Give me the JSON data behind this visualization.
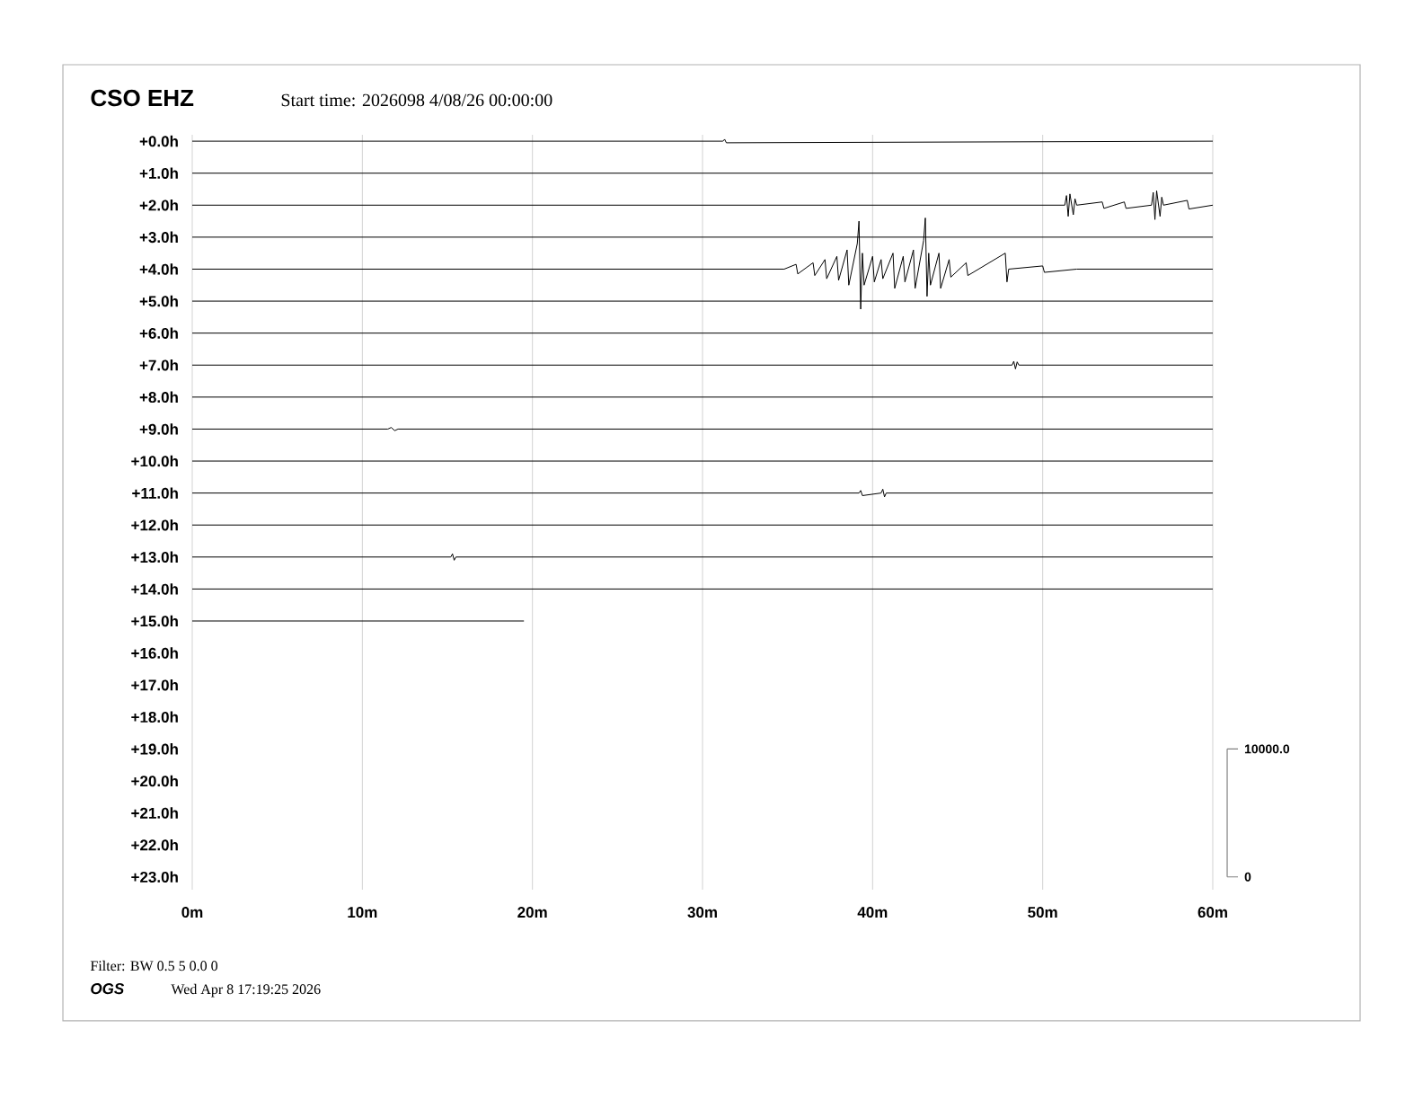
{
  "chart_data": {
    "type": "line",
    "title": "CSO EHZ",
    "subtitle": "Start time: 2026098  4/08/26 00:00:00",
    "annotations": [
      "Filter: BW 0.5 5 0.0 0",
      "OGS",
      "Wed Apr  8 17:19:25 2026"
    ],
    "xlim": [
      0,
      60
    ],
    "xticks": [
      {
        "value": 0,
        "label": "0m"
      },
      {
        "value": 10,
        "label": "10m"
      },
      {
        "value": 20,
        "label": "20m"
      },
      {
        "value": 30,
        "label": "30m"
      },
      {
        "value": 40,
        "label": "40m"
      },
      {
        "value": 50,
        "label": "50m"
      },
      {
        "value": 60,
        "label": "60m"
      }
    ],
    "ylim": [
      23.4,
      -0.2
    ],
    "yticks": [
      {
        "value": 0,
        "label": "+0.0h"
      },
      {
        "value": 1,
        "label": "+1.0h"
      },
      {
        "value": 2,
        "label": "+2.0h"
      },
      {
        "value": 3,
        "label": "+3.0h"
      },
      {
        "value": 4,
        "label": "+4.0h"
      },
      {
        "value": 5,
        "label": "+5.0h"
      },
      {
        "value": 6,
        "label": "+6.0h"
      },
      {
        "value": 7,
        "label": "+7.0h"
      },
      {
        "value": 8,
        "label": "+8.0h"
      },
      {
        "value": 9,
        "label": "+9.0h"
      },
      {
        "value": 10,
        "label": "+10.0h"
      },
      {
        "value": 11,
        "label": "+11.0h"
      },
      {
        "value": 12,
        "label": "+12.0h"
      },
      {
        "value": 13,
        "label": "+13.0h"
      },
      {
        "value": 14,
        "label": "+14.0h"
      },
      {
        "value": 15,
        "label": "+15.0h"
      },
      {
        "value": 16,
        "label": "+16.0h"
      },
      {
        "value": 17,
        "label": "+17.0h"
      },
      {
        "value": 18,
        "label": "+18.0h"
      },
      {
        "value": 19,
        "label": "+19.0h"
      },
      {
        "value": 20,
        "label": "+20.0h"
      },
      {
        "value": 21,
        "label": "+21.0h"
      },
      {
        "value": 22,
        "label": "+22.0h"
      },
      {
        "value": 23,
        "label": "+23.0h"
      }
    ],
    "y2lim": [
      -1000,
      58000
    ],
    "y2ticks": [
      {
        "value": 10000,
        "label": "10000.0"
      },
      0
    ],
    "grid": "x",
    "series": [
      {
        "color": "#000000",
        "x": [
          0,
          31.2,
          31.3,
          31.4,
          60
        ],
        "values": [
          0,
          0,
          -0.06,
          0.05,
          0
        ]
      },
      {
        "color": "#000000",
        "x": [
          0,
          60
        ],
        "values": [
          1,
          1
        ]
      },
      {
        "color": "#000000",
        "x": [
          0,
          51.3,
          51.4,
          51.5,
          51.6,
          51.8,
          51.9,
          52.0,
          53.5,
          53.6,
          54.8,
          54.9,
          56.4,
          56.5,
          56.6,
          56.7,
          56.9,
          57.0,
          57.1,
          58.5,
          58.6,
          60
        ],
        "values": [
          2,
          2,
          1.7,
          2.35,
          1.65,
          2.3,
          1.8,
          2,
          1.9,
          2.1,
          1.9,
          2.1,
          2,
          1.6,
          2.45,
          1.55,
          2.35,
          1.75,
          2,
          1.85,
          2.12,
          2
        ]
      },
      {
        "color": "#000000",
        "x": [
          0,
          60
        ],
        "values": [
          3,
          3
        ]
      },
      {
        "color": "#000000",
        "x": [
          0,
          34.8,
          35.5,
          35.6,
          36.5,
          36.6,
          37.2,
          37.3,
          37.9,
          38.0,
          38.5,
          38.6,
          39.1,
          39.2,
          39.3,
          39.4,
          39.5,
          40.0,
          40.1,
          40.5,
          40.6,
          41.2,
          41.3,
          41.8,
          41.9,
          42.4,
          42.5,
          43.0,
          43.1,
          43.2,
          43.3,
          43.4,
          43.9,
          44.0,
          44.5,
          44.6,
          45.5,
          45.6,
          47.8,
          47.9,
          48.0,
          50.0,
          50.1,
          52.0,
          60
        ],
        "values": [
          4,
          4,
          3.85,
          4.15,
          3.8,
          4.2,
          3.7,
          4.3,
          3.6,
          4.35,
          3.4,
          4.5,
          3.2,
          2.5,
          5.25,
          3.5,
          4.5,
          3.6,
          4.4,
          3.7,
          4.3,
          3.5,
          4.6,
          3.6,
          4.4,
          3.4,
          4.6,
          3.1,
          2.4,
          4.85,
          3.5,
          4.5,
          3.5,
          4.6,
          3.7,
          4.25,
          3.8,
          4.2,
          3.5,
          4.4,
          4,
          3.9,
          4.1,
          4,
          4
        ]
      },
      {
        "color": "#000000",
        "x": [
          0,
          60
        ],
        "values": [
          5,
          5
        ]
      },
      {
        "color": "#000000",
        "x": [
          0,
          60
        ],
        "values": [
          6,
          6
        ]
      },
      {
        "color": "#000000",
        "x": [
          0,
          48.2,
          48.3,
          48.4,
          48.5,
          48.6,
          60
        ],
        "values": [
          7,
          7,
          6.88,
          7.12,
          6.9,
          7,
          7
        ]
      },
      {
        "color": "#000000",
        "x": [
          0,
          60
        ],
        "values": [
          8,
          8
        ]
      },
      {
        "color": "#000000",
        "x": [
          0,
          11.5,
          11.7,
          11.9,
          12.1,
          60
        ],
        "values": [
          9,
          9,
          8.95,
          9.05,
          9,
          9
        ]
      },
      {
        "color": "#000000",
        "x": [
          0,
          60
        ],
        "values": [
          10,
          10
        ]
      },
      {
        "color": "#000000",
        "x": [
          0,
          39.2,
          39.3,
          39.4,
          40.5,
          40.6,
          40.7,
          40.8,
          60
        ],
        "values": [
          11,
          11,
          10.92,
          11.08,
          11,
          10.88,
          11.12,
          11,
          11
        ]
      },
      {
        "color": "#000000",
        "x": [
          0,
          60
        ],
        "values": [
          12,
          12
        ]
      },
      {
        "color": "#000000",
        "x": [
          0,
          15.2,
          15.3,
          15.4,
          15.5,
          60
        ],
        "values": [
          13,
          13,
          12.9,
          13.1,
          13,
          13
        ]
      },
      {
        "color": "#000000",
        "x": [
          0,
          60
        ],
        "values": [
          14,
          14
        ]
      },
      {
        "color": "#000000",
        "x": [
          0,
          19.5
        ],
        "values": [
          15,
          15
        ]
      }
    ]
  }
}
